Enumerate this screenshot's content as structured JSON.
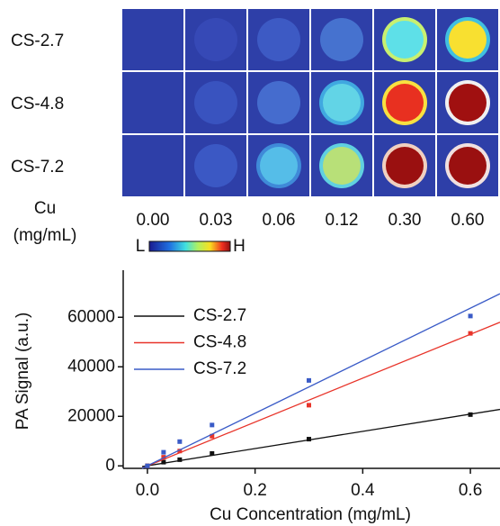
{
  "image_panel": {
    "row_labels": [
      "CS-2.7",
      "CS-4.8",
      "CS-7.2"
    ],
    "axis_label": [
      "Cu",
      "(mg/mL)"
    ],
    "columns": [
      "0.00",
      "0.03",
      "0.06",
      "0.12",
      "0.30",
      "0.60"
    ],
    "colorbar": {
      "low": "L",
      "high": "H"
    }
  },
  "chart_data": {
    "type": "scatter",
    "x_label": "Cu Concentration (mg/mL)",
    "y_label": "PA Signal (a.u.)",
    "x": [
      0,
      0.03,
      0.06,
      0.12,
      0.3,
      0.6
    ],
    "fit_x": [
      -0.01,
      0.655
    ],
    "series": [
      {
        "name": "CS-2.7",
        "color": "#111111",
        "values": [
          0,
          1500,
          2500,
          5000,
          10800,
          20700
        ],
        "fit_values": [
          -300,
          22800
        ]
      },
      {
        "name": "CS-4.8",
        "color": "#e8342a",
        "values": [
          0,
          3500,
          6000,
          12000,
          24500,
          53500
        ],
        "fit_values": [
          -900,
          58000
        ]
      },
      {
        "name": "CS-7.2",
        "color": "#3a5bc7",
        "values": [
          0,
          5500,
          9800,
          16500,
          34500,
          60500
        ],
        "fit_values": [
          -1000,
          69500
        ]
      }
    ],
    "xlim": [
      -0.045,
      0.655
    ],
    "ylim": [
      -1000,
      79000
    ],
    "xticks": [
      {
        "value": 0,
        "label": "0.0"
      },
      0.2,
      0.4,
      0.6
    ],
    "yticks": [
      0,
      20000,
      40000,
      60000
    ],
    "legend": "upper left"
  }
}
